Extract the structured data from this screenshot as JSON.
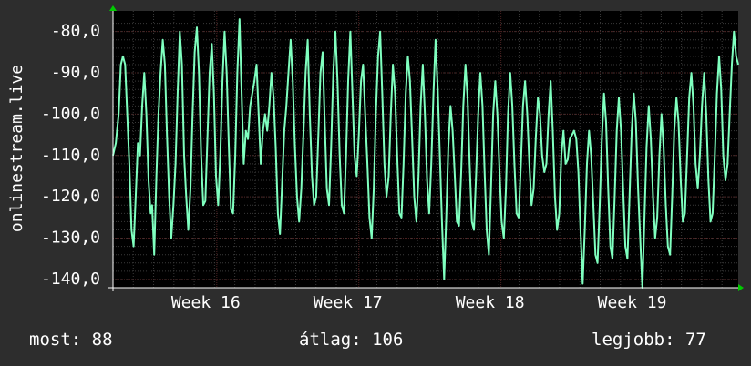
{
  "chart_data": {
    "type": "line",
    "ylabel": "onlinestream.live",
    "yticks": [
      "-80,0",
      "-90,0",
      "-100,0",
      "-110,0",
      "-120,0",
      "-130,0",
      "-140,0"
    ],
    "ytick_values": [
      -80,
      -90,
      -100,
      -110,
      -120,
      -130,
      -140
    ],
    "ylim": [
      -142,
      -75
    ],
    "xticks": [
      "Week 16",
      "Week 17",
      "Week 18",
      "Week 19"
    ],
    "xtick_values": [
      1.33,
      2.33,
      3.33,
      4.33
    ],
    "xlim": [
      0.6,
      5.0
    ],
    "grid": true,
    "colors": {
      "background": "#2d2d2d",
      "plot": "#000000",
      "line": "#7fffbf",
      "grid_major": "#4a2020",
      "grid_minor": "#3a3a3a",
      "arrow": "#00cc00"
    },
    "series": [
      {
        "values": [
          [
            0.6,
            -110
          ],
          [
            0.62,
            -107
          ],
          [
            0.64,
            -100
          ],
          [
            0.655,
            -88
          ],
          [
            0.67,
            -86
          ],
          [
            0.685,
            -88
          ],
          [
            0.7,
            -100
          ],
          [
            0.715,
            -112
          ],
          [
            0.73,
            -128
          ],
          [
            0.745,
            -132
          ],
          [
            0.76,
            -120
          ],
          [
            0.775,
            -107
          ],
          [
            0.79,
            -110
          ],
          [
            0.805,
            -98
          ],
          [
            0.82,
            -90
          ],
          [
            0.835,
            -100
          ],
          [
            0.85,
            -116
          ],
          [
            0.865,
            -124
          ],
          [
            0.875,
            -122
          ],
          [
            0.89,
            -134
          ],
          [
            0.905,
            -115
          ],
          [
            0.92,
            -100
          ],
          [
            0.935,
            -90
          ],
          [
            0.95,
            -82
          ],
          [
            0.965,
            -88
          ],
          [
            0.98,
            -105
          ],
          [
            0.995,
            -120
          ],
          [
            1.01,
            -130
          ],
          [
            1.025,
            -122
          ],
          [
            1.04,
            -112
          ],
          [
            1.055,
            -95
          ],
          [
            1.07,
            -80
          ],
          [
            1.085,
            -88
          ],
          [
            1.1,
            -110
          ],
          [
            1.115,
            -120
          ],
          [
            1.13,
            -128
          ],
          [
            1.145,
            -118
          ],
          [
            1.16,
            -100
          ],
          [
            1.175,
            -85
          ],
          [
            1.19,
            -79
          ],
          [
            1.205,
            -90
          ],
          [
            1.22,
            -110
          ],
          [
            1.235,
            -122
          ],
          [
            1.25,
            -121
          ],
          [
            1.265,
            -105
          ],
          [
            1.28,
            -90
          ],
          [
            1.295,
            -83
          ],
          [
            1.31,
            -95
          ],
          [
            1.325,
            -115
          ],
          [
            1.34,
            -122
          ],
          [
            1.355,
            -110
          ],
          [
            1.37,
            -92
          ],
          [
            1.385,
            -80
          ],
          [
            1.4,
            -90
          ],
          [
            1.415,
            -108
          ],
          [
            1.43,
            -123
          ],
          [
            1.445,
            -124
          ],
          [
            1.46,
            -110
          ],
          [
            1.475,
            -90
          ],
          [
            1.49,
            -77
          ],
          [
            1.505,
            -95
          ],
          [
            1.52,
            -112
          ],
          [
            1.535,
            -104
          ],
          [
            1.55,
            -106
          ],
          [
            1.565,
            -98
          ],
          [
            1.58,
            -95
          ],
          [
            1.595,
            -92
          ],
          [
            1.61,
            -88
          ],
          [
            1.625,
            -100
          ],
          [
            1.64,
            -112
          ],
          [
            1.655,
            -104
          ],
          [
            1.67,
            -100
          ],
          [
            1.685,
            -104
          ],
          [
            1.7,
            -98
          ],
          [
            1.715,
            -90
          ],
          [
            1.73,
            -96
          ],
          [
            1.745,
            -108
          ],
          [
            1.76,
            -124
          ],
          [
            1.775,
            -129
          ],
          [
            1.79,
            -117
          ],
          [
            1.805,
            -104
          ],
          [
            1.82,
            -98
          ],
          [
            1.835,
            -90
          ],
          [
            1.85,
            -82
          ],
          [
            1.865,
            -92
          ],
          [
            1.88,
            -108
          ],
          [
            1.895,
            -120
          ],
          [
            1.91,
            -126
          ],
          [
            1.925,
            -118
          ],
          [
            1.94,
            -105
          ],
          [
            1.955,
            -90
          ],
          [
            1.97,
            -82
          ],
          [
            1.985,
            -100
          ],
          [
            2.0,
            -115
          ],
          [
            2.015,
            -122
          ],
          [
            2.03,
            -120
          ],
          [
            2.045,
            -105
          ],
          [
            2.06,
            -90
          ],
          [
            2.075,
            -85
          ],
          [
            2.09,
            -102
          ],
          [
            2.105,
            -118
          ],
          [
            2.12,
            -122
          ],
          [
            2.135,
            -108
          ],
          [
            2.15,
            -90
          ],
          [
            2.165,
            -80
          ],
          [
            2.18,
            -92
          ],
          [
            2.195,
            -110
          ],
          [
            2.21,
            -122
          ],
          [
            2.225,
            -124
          ],
          [
            2.24,
            -110
          ],
          [
            2.255,
            -92
          ],
          [
            2.27,
            -80
          ],
          [
            2.285,
            -95
          ],
          [
            2.3,
            -110
          ],
          [
            2.315,
            -115
          ],
          [
            2.33,
            -105
          ],
          [
            2.345,
            -92
          ],
          [
            2.36,
            -88
          ],
          [
            2.375,
            -100
          ],
          [
            2.39,
            -112
          ],
          [
            2.405,
            -125
          ],
          [
            2.42,
            -130
          ],
          [
            2.435,
            -118
          ],
          [
            2.45,
            -100
          ],
          [
            2.465,
            -86
          ],
          [
            2.48,
            -80
          ],
          [
            2.495,
            -95
          ],
          [
            2.51,
            -112
          ],
          [
            2.525,
            -120
          ],
          [
            2.54,
            -115
          ],
          [
            2.555,
            -100
          ],
          [
            2.57,
            -88
          ],
          [
            2.585,
            -95
          ],
          [
            2.6,
            -110
          ],
          [
            2.615,
            -124
          ],
          [
            2.63,
            -125
          ],
          [
            2.645,
            -112
          ],
          [
            2.66,
            -95
          ],
          [
            2.675,
            -86
          ],
          [
            2.69,
            -92
          ],
          [
            2.705,
            -106
          ],
          [
            2.72,
            -120
          ],
          [
            2.735,
            -126
          ],
          [
            2.75,
            -115
          ],
          [
            2.765,
            -98
          ],
          [
            2.78,
            -88
          ],
          [
            2.795,
            -100
          ],
          [
            2.81,
            -116
          ],
          [
            2.825,
            -124
          ],
          [
            2.84,
            -112
          ],
          [
            2.855,
            -95
          ],
          [
            2.87,
            -82
          ],
          [
            2.885,
            -94
          ],
          [
            2.9,
            -110
          ],
          [
            2.915,
            -126
          ],
          [
            2.93,
            -140
          ],
          [
            2.945,
            -125
          ],
          [
            2.96,
            -108
          ],
          [
            2.975,
            -98
          ],
          [
            2.99,
            -104
          ],
          [
            3.005,
            -115
          ],
          [
            3.02,
            -126
          ],
          [
            3.035,
            -127
          ],
          [
            3.05,
            -114
          ],
          [
            3.065,
            -98
          ],
          [
            3.08,
            -88
          ],
          [
            3.095,
            -96
          ],
          [
            3.11,
            -112
          ],
          [
            3.125,
            -126
          ],
          [
            3.14,
            -128
          ],
          [
            3.155,
            -115
          ],
          [
            3.17,
            -100
          ],
          [
            3.185,
            -90
          ],
          [
            3.2,
            -98
          ],
          [
            3.215,
            -114
          ],
          [
            3.23,
            -128
          ],
          [
            3.245,
            -134
          ],
          [
            3.26,
            -118
          ],
          [
            3.275,
            -100
          ],
          [
            3.29,
            -92
          ],
          [
            3.305,
            -100
          ],
          [
            3.32,
            -114
          ],
          [
            3.335,
            -126
          ],
          [
            3.35,
            -130
          ],
          [
            3.365,
            -118
          ],
          [
            3.38,
            -100
          ],
          [
            3.395,
            -90
          ],
          [
            3.41,
            -98
          ],
          [
            3.425,
            -112
          ],
          [
            3.44,
            -124
          ],
          [
            3.455,
            -125
          ],
          [
            3.47,
            -112
          ],
          [
            3.485,
            -98
          ],
          [
            3.5,
            -92
          ],
          [
            3.515,
            -100
          ],
          [
            3.53,
            -112
          ],
          [
            3.545,
            -122
          ],
          [
            3.56,
            -118
          ],
          [
            3.575,
            -106
          ],
          [
            3.59,
            -96
          ],
          [
            3.605,
            -100
          ],
          [
            3.62,
            -110
          ],
          [
            3.635,
            -114
          ],
          [
            3.65,
            -112
          ],
          [
            3.665,
            -100
          ],
          [
            3.68,
            -92
          ],
          [
            3.695,
            -104
          ],
          [
            3.71,
            -120
          ],
          [
            3.725,
            -128
          ],
          [
            3.74,
            -124
          ],
          [
            3.755,
            -110
          ],
          [
            3.77,
            -104
          ],
          [
            3.785,
            -112
          ],
          [
            3.8,
            -111
          ],
          [
            3.815,
            -106
          ],
          [
            3.83,
            -105
          ],
          [
            3.845,
            -104
          ],
          [
            3.86,
            -106
          ],
          [
            3.875,
            -114
          ],
          [
            3.89,
            -128
          ],
          [
            3.905,
            -141
          ],
          [
            3.92,
            -128
          ],
          [
            3.935,
            -112
          ],
          [
            3.95,
            -104
          ],
          [
            3.965,
            -110
          ],
          [
            3.98,
            -122
          ],
          [
            3.995,
            -134
          ],
          [
            4.01,
            -136
          ],
          [
            4.025,
            -122
          ],
          [
            4.04,
            -106
          ],
          [
            4.055,
            -95
          ],
          [
            4.07,
            -102
          ],
          [
            4.085,
            -118
          ],
          [
            4.1,
            -132
          ],
          [
            4.115,
            -135
          ],
          [
            4.13,
            -120
          ],
          [
            4.145,
            -104
          ],
          [
            4.16,
            -96
          ],
          [
            4.175,
            -104
          ],
          [
            4.19,
            -118
          ],
          [
            4.205,
            -132
          ],
          [
            4.22,
            -135
          ],
          [
            4.235,
            -120
          ],
          [
            4.25,
            -104
          ],
          [
            4.265,
            -95
          ],
          [
            4.28,
            -102
          ],
          [
            4.295,
            -118
          ],
          [
            4.31,
            -130
          ],
          [
            4.325,
            -142
          ],
          [
            4.34,
            -125
          ],
          [
            4.355,
            -108
          ],
          [
            4.37,
            -98
          ],
          [
            4.385,
            -106
          ],
          [
            4.4,
            -120
          ],
          [
            4.415,
            -130
          ],
          [
            4.43,
            -125
          ],
          [
            4.445,
            -110
          ],
          [
            4.46,
            -100
          ],
          [
            4.475,
            -108
          ],
          [
            4.49,
            -122
          ],
          [
            4.505,
            -132
          ],
          [
            4.52,
            -134
          ],
          [
            4.535,
            -120
          ],
          [
            4.55,
            -104
          ],
          [
            4.565,
            -96
          ],
          [
            4.58,
            -102
          ],
          [
            4.595,
            -116
          ],
          [
            4.61,
            -126
          ],
          [
            4.625,
            -124
          ],
          [
            4.64,
            -110
          ],
          [
            4.655,
            -96
          ],
          [
            4.67,
            -90
          ],
          [
            4.685,
            -98
          ],
          [
            4.7,
            -112
          ],
          [
            4.715,
            -118
          ],
          [
            4.73,
            -110
          ],
          [
            4.745,
            -98
          ],
          [
            4.76,
            -90
          ],
          [
            4.775,
            -100
          ],
          [
            4.79,
            -116
          ],
          [
            4.805,
            -126
          ],
          [
            4.82,
            -124
          ],
          [
            4.835,
            -110
          ],
          [
            4.85,
            -95
          ],
          [
            4.865,
            -86
          ],
          [
            4.88,
            -94
          ],
          [
            4.895,
            -110
          ],
          [
            4.91,
            -116
          ],
          [
            4.925,
            -112
          ],
          [
            4.94,
            -100
          ],
          [
            4.955,
            -88
          ],
          [
            4.97,
            -80
          ],
          [
            4.985,
            -86
          ],
          [
            5.0,
            -88
          ]
        ]
      }
    ],
    "footer": {
      "last": "most: 88",
      "avg": "átlag: 106",
      "best": "legjobb: 77"
    }
  }
}
